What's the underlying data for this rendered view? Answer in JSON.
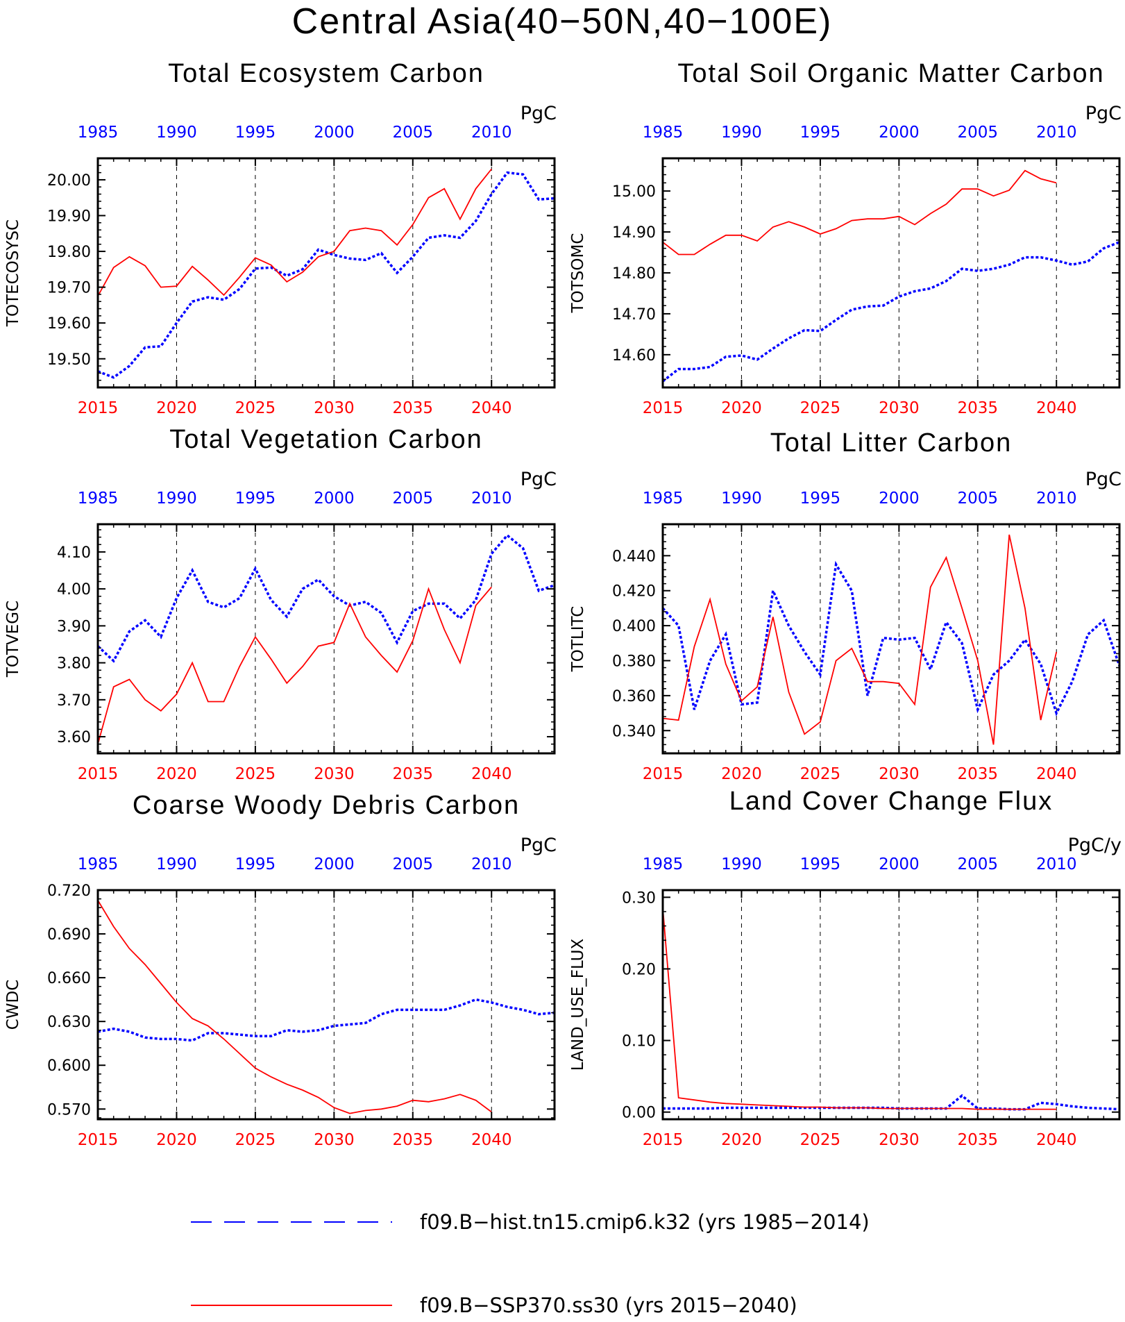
{
  "figure": {
    "title": "Central Asia(40−50N,40−100E)",
    "colors": {
      "hist": "#0000ff",
      "ssp": "#ff0000",
      "axis": "#000000"
    }
  },
  "legend": {
    "hist_label": "f09.B−hist.tn15.cmip6.k32 (yrs 1985−2014)",
    "ssp_label": "f09.B−SSP370.ss30 (yrs 2015−2040)"
  },
  "chart_data": [
    {
      "type": "line",
      "title": "Total Ecosystem Carbon",
      "ylabel": "TOTECOSYSC",
      "unit": "PgC",
      "ylim": [
        19.42,
        20.06
      ],
      "yticks": [
        19.5,
        19.6,
        19.7,
        19.8,
        19.9,
        20.0
      ],
      "tick_decimals": 2,
      "xlim_bottom": [
        2015,
        2044
      ],
      "xlim_top": [
        1985,
        2014
      ],
      "xticks_bottom": [
        2015,
        2020,
        2025,
        2030,
        2035,
        2040
      ],
      "xticks_top": [
        1985,
        1990,
        1995,
        2000,
        2005,
        2010
      ],
      "grid": "vertical dashed at bottom ticks",
      "series": [
        {
          "name": "f09.B−hist.tn15.cmip6.k32",
          "axis": "top",
          "style": "dotted",
          "color": "#0000ff",
          "x_start": 1985,
          "values": [
            19.465,
            19.448,
            19.48,
            19.532,
            19.535,
            19.6,
            19.66,
            19.672,
            19.665,
            19.695,
            19.752,
            19.755,
            19.732,
            19.75,
            19.805,
            19.79,
            19.78,
            19.776,
            19.795,
            19.74,
            19.785,
            19.838,
            19.845,
            19.838,
            19.885,
            19.96,
            20.02,
            20.015,
            19.945,
            19.948
          ]
        },
        {
          "name": "f09.B−SSP370.ss30",
          "axis": "bottom",
          "style": "solid",
          "color": "#ff0000",
          "x_start": 2015,
          "values": [
            19.675,
            19.755,
            19.785,
            19.76,
            19.7,
            19.703,
            19.758,
            19.72,
            19.678,
            19.728,
            19.782,
            19.762,
            19.715,
            19.742,
            19.785,
            19.8,
            19.858,
            19.865,
            19.858,
            19.818,
            19.875,
            19.95,
            19.975,
            19.89,
            19.975,
            20.03
          ]
        }
      ]
    },
    {
      "type": "line",
      "title": "Total Soil Organic Matter Carbon",
      "ylabel": "TOTSOMC",
      "unit": "PgC",
      "ylim": [
        14.52,
        15.08
      ],
      "yticks": [
        14.6,
        14.7,
        14.8,
        14.9,
        15.0
      ],
      "tick_decimals": 2,
      "xlim_bottom": [
        2015,
        2044
      ],
      "xlim_top": [
        1985,
        2014
      ],
      "xticks_bottom": [
        2015,
        2020,
        2025,
        2030,
        2035,
        2040
      ],
      "xticks_top": [
        1985,
        1990,
        1995,
        2000,
        2005,
        2010
      ],
      "grid": "vertical dashed at bottom ticks",
      "series": [
        {
          "name": "f09.B−hist.tn15.cmip6.k32",
          "axis": "top",
          "style": "dotted",
          "color": "#0000ff",
          "x_start": 1985,
          "values": [
            14.535,
            14.565,
            14.565,
            14.57,
            14.595,
            14.598,
            14.588,
            14.615,
            14.64,
            14.66,
            14.658,
            14.685,
            14.71,
            14.718,
            14.72,
            14.742,
            14.755,
            14.762,
            14.78,
            14.81,
            14.805,
            14.81,
            14.82,
            14.838,
            14.838,
            14.83,
            14.82,
            14.828,
            14.86,
            14.875
          ]
        },
        {
          "name": "f09.B−SSP370.ss30",
          "axis": "bottom",
          "style": "solid",
          "color": "#ff0000",
          "x_start": 2015,
          "values": [
            14.875,
            14.845,
            14.845,
            14.87,
            14.892,
            14.892,
            14.878,
            14.912,
            14.925,
            14.912,
            14.895,
            14.908,
            14.928,
            14.932,
            14.932,
            14.938,
            14.918,
            14.945,
            14.968,
            15.005,
            15.005,
            14.988,
            15.002,
            15.05,
            15.03,
            15.02
          ]
        }
      ]
    },
    {
      "type": "line",
      "title": "Total Vegetation Carbon",
      "ylabel": "TOTVEGC",
      "unit": "PgC",
      "ylim": [
        3.555,
        4.175
      ],
      "yticks": [
        3.6,
        3.7,
        3.8,
        3.9,
        4.0,
        4.1
      ],
      "tick_decimals": 2,
      "xlim_bottom": [
        2015,
        2044
      ],
      "xlim_top": [
        1985,
        2014
      ],
      "xticks_bottom": [
        2015,
        2020,
        2025,
        2030,
        2035,
        2040
      ],
      "xticks_top": [
        1985,
        1990,
        1995,
        2000,
        2005,
        2010
      ],
      "grid": "vertical dashed at bottom ticks",
      "series": [
        {
          "name": "f09.B−hist.tn15.cmip6.k32",
          "axis": "top",
          "style": "dotted",
          "color": "#0000ff",
          "x_start": 1985,
          "values": [
            3.845,
            3.805,
            3.885,
            3.915,
            3.87,
            3.975,
            4.05,
            3.965,
            3.95,
            3.975,
            4.055,
            3.97,
            3.925,
            4.0,
            4.025,
            3.98,
            3.955,
            3.965,
            3.935,
            3.855,
            3.94,
            3.96,
            3.96,
            3.92,
            3.97,
            4.095,
            4.145,
            4.11,
            3.995,
            4.01
          ]
        },
        {
          "name": "f09.B−SSP370.ss30",
          "axis": "bottom",
          "style": "solid",
          "color": "#ff0000",
          "x_start": 2015,
          "values": [
            3.58,
            3.735,
            3.755,
            3.7,
            3.67,
            3.715,
            3.8,
            3.695,
            3.695,
            3.79,
            3.87,
            3.81,
            3.745,
            3.79,
            3.845,
            3.855,
            3.96,
            3.87,
            3.82,
            3.775,
            3.86,
            4.0,
            3.89,
            3.8,
            3.955,
            4.005
          ]
        }
      ]
    },
    {
      "type": "line",
      "title": "Total Litter Carbon",
      "ylabel": "TOTLITC",
      "unit": "PgC",
      "ylim": [
        0.327,
        0.458
      ],
      "yticks": [
        0.34,
        0.36,
        0.38,
        0.4,
        0.42,
        0.44
      ],
      "tick_decimals": 3,
      "xlim_bottom": [
        2015,
        2044
      ],
      "xlim_top": [
        1985,
        2014
      ],
      "xticks_bottom": [
        2015,
        2020,
        2025,
        2030,
        2035,
        2040
      ],
      "xticks_top": [
        1985,
        1990,
        1995,
        2000,
        2005,
        2010
      ],
      "grid": "vertical dashed at bottom ticks",
      "series": [
        {
          "name": "f09.B−hist.tn15.cmip6.k32",
          "axis": "top",
          "style": "dotted",
          "color": "#0000ff",
          "x_start": 1985,
          "values": [
            0.41,
            0.4,
            0.352,
            0.38,
            0.395,
            0.355,
            0.356,
            0.42,
            0.4,
            0.385,
            0.372,
            0.435,
            0.42,
            0.36,
            0.393,
            0.392,
            0.393,
            0.375,
            0.402,
            0.39,
            0.352,
            0.372,
            0.38,
            0.392,
            0.378,
            0.35,
            0.368,
            0.395,
            0.403,
            0.377
          ]
        },
        {
          "name": "f09.B−SSP370.ss30",
          "axis": "bottom",
          "style": "solid",
          "color": "#ff0000",
          "x_start": 2015,
          "values": [
            0.347,
            0.346,
            0.388,
            0.415,
            0.378,
            0.357,
            0.365,
            0.405,
            0.362,
            0.338,
            0.345,
            0.38,
            0.387,
            0.368,
            0.368,
            0.367,
            0.355,
            0.422,
            0.439,
            0.41,
            0.38,
            0.332,
            0.452,
            0.41,
            0.346,
            0.385
          ]
        }
      ]
    },
    {
      "type": "line",
      "title": "Coarse Woody Debris Carbon",
      "ylabel": "CWDC",
      "unit": "PgC",
      "ylim": [
        0.563,
        0.72
      ],
      "yticks": [
        0.57,
        0.6,
        0.63,
        0.66,
        0.69,
        0.72
      ],
      "tick_decimals": 3,
      "xlim_bottom": [
        2015,
        2044
      ],
      "xlim_top": [
        1985,
        2014
      ],
      "xticks_bottom": [
        2015,
        2020,
        2025,
        2030,
        2035,
        2040
      ],
      "xticks_top": [
        1985,
        1990,
        1995,
        2000,
        2005,
        2010
      ],
      "grid": "vertical dashed at bottom ticks",
      "series": [
        {
          "name": "f09.B−hist.tn15.cmip6.k32",
          "axis": "top",
          "style": "dotted",
          "color": "#0000ff",
          "x_start": 1985,
          "values": [
            0.623,
            0.625,
            0.623,
            0.619,
            0.618,
            0.618,
            0.617,
            0.622,
            0.622,
            0.621,
            0.62,
            0.62,
            0.624,
            0.623,
            0.624,
            0.627,
            0.628,
            0.629,
            0.635,
            0.638,
            0.638,
            0.638,
            0.638,
            0.641,
            0.645,
            0.643,
            0.64,
            0.638,
            0.635,
            0.636
          ]
        },
        {
          "name": "f09.B−SSP370.ss30",
          "axis": "bottom",
          "style": "solid",
          "color": "#ff0000",
          "x_start": 2015,
          "values": [
            0.713,
            0.695,
            0.68,
            0.669,
            0.656,
            0.643,
            0.632,
            0.627,
            0.618,
            0.608,
            0.598,
            0.592,
            0.587,
            0.583,
            0.578,
            0.571,
            0.567,
            0.569,
            0.57,
            0.572,
            0.576,
            0.575,
            0.577,
            0.58,
            0.576,
            0.568
          ]
        }
      ]
    },
    {
      "type": "line",
      "title": "Land Cover Change Flux",
      "ylabel": "LAND_USE_FLUX",
      "unit": "PgC/y",
      "ylim": [
        -0.01,
        0.31
      ],
      "yticks": [
        0.0,
        0.1,
        0.2,
        0.3
      ],
      "tick_decimals": 2,
      "xlim_bottom": [
        2015,
        2044
      ],
      "xlim_top": [
        1985,
        2014
      ],
      "xticks_bottom": [
        2015,
        2020,
        2025,
        2030,
        2035,
        2040
      ],
      "xticks_top": [
        1985,
        1990,
        1995,
        2000,
        2005,
        2010
      ],
      "grid": "vertical dashed at bottom ticks",
      "series": [
        {
          "name": "f09.B−hist.tn15.cmip6.k32",
          "axis": "top",
          "style": "dotted",
          "color": "#0000ff",
          "x_start": 1985,
          "values": [
            0.005,
            0.005,
            0.005,
            0.005,
            0.006,
            0.006,
            0.006,
            0.006,
            0.006,
            0.006,
            0.006,
            0.006,
            0.006,
            0.006,
            0.006,
            0.005,
            0.005,
            0.005,
            0.005,
            0.023,
            0.005,
            0.005,
            0.004,
            0.004,
            0.013,
            0.011,
            0.008,
            0.006,
            0.005,
            0.004
          ]
        },
        {
          "name": "f09.B−SSP370.ss30",
          "axis": "bottom",
          "style": "solid",
          "color": "#ff0000",
          "x_start": 2015,
          "values": [
            0.285,
            0.02,
            0.017,
            0.014,
            0.012,
            0.011,
            0.01,
            0.009,
            0.008,
            0.007,
            0.007,
            0.006,
            0.006,
            0.006,
            0.005,
            0.005,
            0.005,
            0.005,
            0.005,
            0.005,
            0.004,
            0.004,
            0.004,
            0.004,
            0.004,
            0.004
          ]
        }
      ]
    }
  ]
}
